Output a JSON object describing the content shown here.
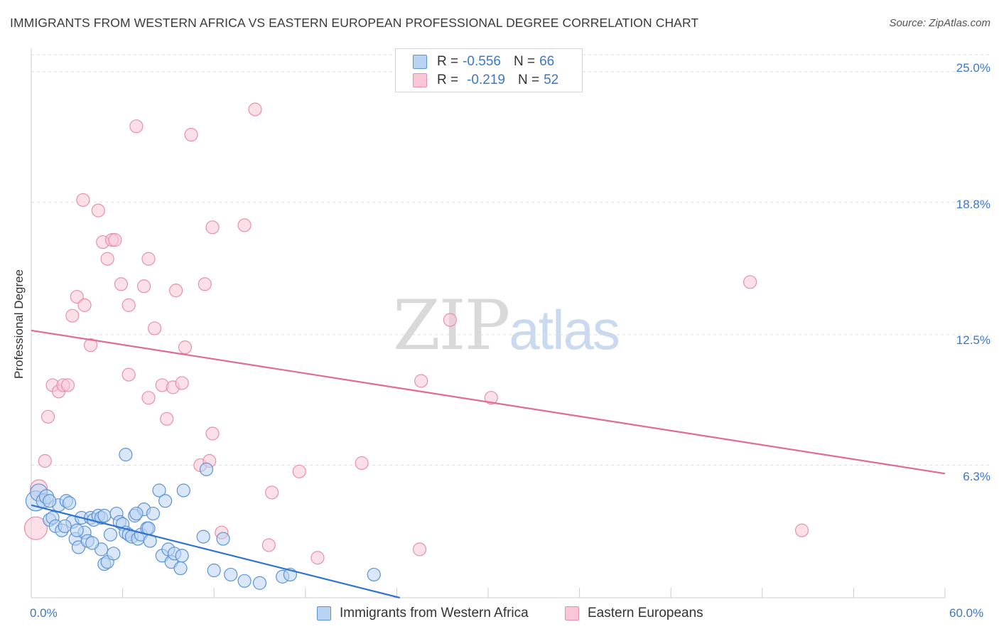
{
  "header": {
    "title": "IMMIGRANTS FROM WESTERN AFRICA VS EASTERN EUROPEAN PROFESSIONAL DEGREE CORRELATION CHART",
    "source": "Source: ZipAtlas.com"
  },
  "legend": {
    "r_label": "R =",
    "n_label": "N =",
    "rows": [
      {
        "r": "-0.556",
        "n": "66"
      },
      {
        "r": "-0.219",
        "n": "52"
      }
    ]
  },
  "watermark": {
    "zip": "ZIP",
    "atlas": "atlas"
  },
  "colors": {
    "blue_fill": "#b9d3f2",
    "blue_stroke": "#5b93d6",
    "blue_line": "#2f74d0",
    "pink_fill": "#f8c6d6",
    "pink_stroke": "#e88fae",
    "pink_line": "#e06a98",
    "tick_text": "#3a78c8",
    "grid": "#dddddd"
  },
  "chart_data": {
    "type": "scatter",
    "title": "IMMIGRANTS FROM WESTERN AFRICA VS EASTERN EUROPEAN PROFESSIONAL DEGREE CORRELATION CHART",
    "xlabel": "",
    "ylabel": "Professional Degree",
    "xlim": [
      0,
      60
    ],
    "ylim": [
      0,
      25.8
    ],
    "x_tick_labels": [
      "0.0%",
      "60.0%"
    ],
    "y_ticks": [
      25.0,
      18.8,
      12.5,
      6.3
    ],
    "y_tick_labels": [
      "25.0%",
      "18.8%",
      "12.5%",
      "6.3%"
    ],
    "grid": "horizontal dashed",
    "legend_position": "top-center",
    "series": [
      {
        "name": "Immigrants from Western Africa",
        "color": "blue",
        "trend": {
          "x": [
            0,
            24.2
          ],
          "y": [
            4.4,
            0.0
          ]
        },
        "points": [
          [
            0.3,
            4.6,
            14
          ],
          [
            0.5,
            5.0,
            12
          ],
          [
            0.8,
            4.6,
            10
          ],
          [
            1.0,
            4.8,
            10
          ],
          [
            1.2,
            3.7,
            9
          ],
          [
            1.4,
            3.8,
            9
          ],
          [
            1.6,
            3.4,
            9
          ],
          [
            1.8,
            4.4,
            9
          ],
          [
            2.0,
            3.2,
            9
          ],
          [
            2.3,
            4.6,
            9
          ],
          [
            2.5,
            4.5,
            9
          ],
          [
            2.7,
            3.6,
            9
          ],
          [
            2.9,
            2.8,
            9
          ],
          [
            3.1,
            2.4,
            9
          ],
          [
            3.3,
            3.8,
            9
          ],
          [
            3.5,
            3.1,
            9
          ],
          [
            3.7,
            2.7,
            9
          ],
          [
            3.9,
            3.8,
            9
          ],
          [
            4.1,
            3.7,
            9
          ],
          [
            4.4,
            3.9,
            9
          ],
          [
            4.6,
            3.8,
            9
          ],
          [
            4.8,
            3.9,
            9
          ],
          [
            4.6,
            2.3,
            9
          ],
          [
            4.8,
            1.6,
            9
          ],
          [
            5.0,
            1.7,
            9
          ],
          [
            5.2,
            3.0,
            9
          ],
          [
            5.4,
            2.1,
            9
          ],
          [
            5.6,
            4.0,
            9
          ],
          [
            5.8,
            3.6,
            9
          ],
          [
            6.0,
            3.5,
            9
          ],
          [
            6.2,
            3.1,
            9
          ],
          [
            6.4,
            3.0,
            9
          ],
          [
            6.6,
            2.9,
            9
          ],
          [
            6.8,
            3.9,
            9
          ],
          [
            7.0,
            2.8,
            9
          ],
          [
            7.2,
            3.0,
            9
          ],
          [
            7.4,
            4.2,
            9
          ],
          [
            7.6,
            3.3,
            9
          ],
          [
            7.8,
            2.7,
            9
          ],
          [
            8.0,
            4.0,
            9
          ],
          [
            8.4,
            5.1,
            9
          ],
          [
            8.6,
            2.0,
            9
          ],
          [
            8.8,
            4.6,
            9
          ],
          [
            9.0,
            2.3,
            9
          ],
          [
            9.2,
            1.7,
            9
          ],
          [
            9.4,
            2.1,
            9
          ],
          [
            9.8,
            1.4,
            9
          ],
          [
            10.0,
            5.1,
            9
          ],
          [
            11.3,
            2.9,
            9
          ],
          [
            11.5,
            6.1,
            9
          ],
          [
            12.0,
            1.3,
            9
          ],
          [
            12.6,
            2.8,
            9
          ],
          [
            13.1,
            1.1,
            9
          ],
          [
            14.0,
            0.8,
            9
          ],
          [
            15.0,
            0.7,
            9
          ],
          [
            16.5,
            1.0,
            9
          ],
          [
            17.0,
            1.1,
            9
          ],
          [
            22.5,
            1.1,
            9
          ],
          [
            6.2,
            6.8,
            9
          ],
          [
            1.2,
            4.6,
            9
          ],
          [
            2.2,
            3.4,
            9
          ],
          [
            3.0,
            3.2,
            9
          ],
          [
            4.0,
            2.6,
            9
          ],
          [
            6.9,
            4.0,
            9
          ],
          [
            7.7,
            3.3,
            9
          ],
          [
            9.9,
            2.0,
            9
          ]
        ]
      },
      {
        "name": "Eastern Europeans",
        "color": "pink",
        "trend": {
          "x": [
            0,
            60
          ],
          "y": [
            12.7,
            5.9
          ]
        },
        "points": [
          [
            0.3,
            3.3,
            16
          ],
          [
            0.5,
            5.2,
            12
          ],
          [
            0.9,
            6.5,
            9
          ],
          [
            1.1,
            8.6,
            9
          ],
          [
            1.4,
            10.1,
            9
          ],
          [
            1.8,
            9.8,
            9
          ],
          [
            2.1,
            10.1,
            9
          ],
          [
            2.4,
            10.1,
            9
          ],
          [
            2.7,
            13.4,
            9
          ],
          [
            3.0,
            14.3,
            9
          ],
          [
            3.5,
            13.9,
            9
          ],
          [
            3.9,
            12.0,
            9
          ],
          [
            3.4,
            18.9,
            9
          ],
          [
            4.4,
            18.4,
            9
          ],
          [
            4.7,
            16.9,
            9
          ],
          [
            5.0,
            16.1,
            9
          ],
          [
            5.3,
            17.0,
            9
          ],
          [
            5.5,
            17.0,
            9
          ],
          [
            5.9,
            14.9,
            9
          ],
          [
            6.4,
            13.9,
            9
          ],
          [
            6.4,
            10.6,
            9
          ],
          [
            6.9,
            22.4,
            9
          ],
          [
            7.4,
            14.8,
            9
          ],
          [
            7.7,
            16.1,
            9
          ],
          [
            7.7,
            9.5,
            9
          ],
          [
            8.1,
            12.8,
            9
          ],
          [
            8.6,
            10.1,
            9
          ],
          [
            8.9,
            8.5,
            9
          ],
          [
            9.3,
            10.0,
            9
          ],
          [
            9.5,
            14.6,
            9
          ],
          [
            9.9,
            10.2,
            9
          ],
          [
            10.1,
            11.9,
            9
          ],
          [
            10.5,
            22.0,
            9
          ],
          [
            11.1,
            6.3,
            9
          ],
          [
            11.4,
            14.9,
            9
          ],
          [
            11.9,
            17.6,
            9
          ],
          [
            11.7,
            6.5,
            9
          ],
          [
            11.9,
            7.8,
            9
          ],
          [
            12.5,
            3.1,
            9
          ],
          [
            14.0,
            17.7,
            9
          ],
          [
            14.7,
            23.2,
            9
          ],
          [
            15.6,
            2.5,
            9
          ],
          [
            15.8,
            5.0,
            9
          ],
          [
            17.6,
            6.0,
            9
          ],
          [
            18.8,
            1.9,
            9
          ],
          [
            21.7,
            6.4,
            9
          ],
          [
            25.6,
            10.3,
            9
          ],
          [
            25.5,
            2.3,
            9
          ],
          [
            27.5,
            13.2,
            9
          ],
          [
            30.2,
            9.5,
            9
          ],
          [
            47.2,
            15.0,
            9
          ],
          [
            50.6,
            3.2,
            9
          ]
        ]
      }
    ]
  }
}
